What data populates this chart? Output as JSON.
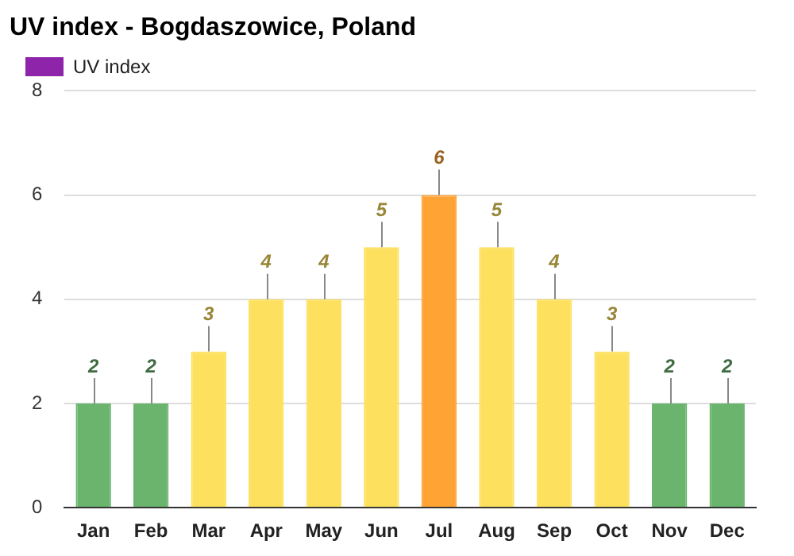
{
  "chart_data": {
    "type": "bar",
    "title": "UV index - Bogdaszowice, Poland",
    "categories": [
      "Jan",
      "Feb",
      "Mar",
      "Apr",
      "May",
      "Jun",
      "Jul",
      "Aug",
      "Sep",
      "Oct",
      "Nov",
      "Dec"
    ],
    "series": [
      {
        "name": "UV index",
        "color": "#8e24aa",
        "values": [
          2,
          2,
          3,
          4,
          4,
          5,
          6,
          5,
          4,
          3,
          2,
          2
        ],
        "colors": [
          "#6ab46e",
          "#6ab46e",
          "#fde05e",
          "#fde05e",
          "#fde05e",
          "#fde05e",
          "#ffa335",
          "#fde05e",
          "#fde05e",
          "#fde05e",
          "#6ab46e",
          "#6ab46e"
        ]
      }
    ],
    "ylim": [
      0,
      8
    ],
    "yticks": [
      0,
      2,
      4,
      6,
      8
    ],
    "grid": "y",
    "legend": "top left",
    "data_labels": true
  }
}
